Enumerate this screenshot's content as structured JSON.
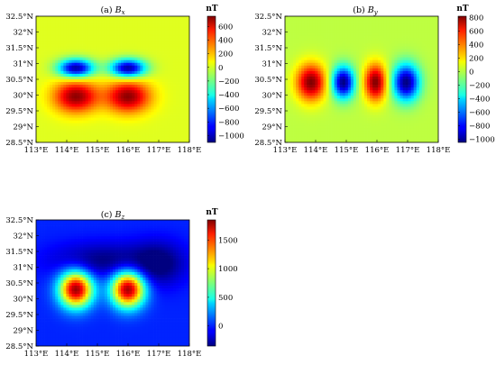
{
  "chart_data": [
    {
      "type": "heatmap",
      "title": "(a) B_x",
      "title_prefix": "(a)",
      "title_symbol": "B",
      "title_sub": "x",
      "x_ticks": [
        "113°E",
        "114°E",
        "115°E",
        "116°E",
        "117°E",
        "118°E"
      ],
      "y_ticks": [
        "28.5°N",
        "29°N",
        "29.5°N",
        "30°N",
        "30.5°N",
        "31°N",
        "31.5°N",
        "32°N",
        "32.5°N"
      ],
      "xlim": [
        113,
        118
      ],
      "ylim": [
        28.5,
        32.5
      ],
      "colorbar": {
        "unit": "nT",
        "range": [
          -1100,
          750
        ],
        "ticks": [
          600,
          400,
          200,
          0,
          -200,
          -400,
          -600,
          -800,
          -1000
        ],
        "tick_labels": [
          "600",
          "400",
          "200",
          "0",
          "−200",
          "−400",
          "−600",
          "−800",
          "−1000"
        ]
      },
      "background_value": 0,
      "blobs": [
        {
          "lon": 114.3,
          "lat": 30.85,
          "value": -1050,
          "sx": 0.4,
          "sy": 0.2
        },
        {
          "lon": 116.0,
          "lat": 30.85,
          "value": -1050,
          "sx": 0.4,
          "sy": 0.2
        },
        {
          "lon": 114.3,
          "lat": 29.95,
          "value": 720,
          "sx": 0.5,
          "sy": 0.35
        },
        {
          "lon": 116.0,
          "lat": 29.95,
          "value": 720,
          "sx": 0.5,
          "sy": 0.35
        }
      ]
    },
    {
      "type": "heatmap",
      "title": "(b) B_y",
      "title_prefix": "(b)",
      "title_symbol": "B",
      "title_sub": "y",
      "x_ticks": [
        "113°E",
        "114°E",
        "115°E",
        "116°E",
        "117°E",
        "118°E"
      ],
      "y_ticks": [
        "28.5°N",
        "29°N",
        "29.5°N",
        "30°N",
        "30.5°N",
        "31°N",
        "31.5°N",
        "32°N",
        "32.5°N"
      ],
      "xlim": [
        113,
        118
      ],
      "ylim": [
        28.5,
        32.5
      ],
      "colorbar": {
        "unit": "nT",
        "range": [
          -1050,
          820
        ],
        "ticks": [
          800,
          600,
          400,
          200,
          0,
          -200,
          -400,
          -600,
          -800,
          -1000
        ],
        "tick_labels": [
          "800",
          "600",
          "400",
          "200",
          "0",
          "−200",
          "−400",
          "−600",
          "−800",
          "−1000"
        ]
      },
      "background_value": 0,
      "blobs": [
        {
          "lon": 113.85,
          "lat": 30.4,
          "value": 820,
          "sx": 0.33,
          "sy": 0.4
        },
        {
          "lon": 114.9,
          "lat": 30.4,
          "value": -1050,
          "sx": 0.25,
          "sy": 0.35
        },
        {
          "lon": 115.95,
          "lat": 30.4,
          "value": 820,
          "sx": 0.25,
          "sy": 0.4
        },
        {
          "lon": 116.95,
          "lat": 30.4,
          "value": -1050,
          "sx": 0.3,
          "sy": 0.4
        }
      ]
    },
    {
      "type": "heatmap",
      "title": "(c) B_z",
      "title_prefix": "(c)",
      "title_symbol": "B",
      "title_sub": "z",
      "x_ticks": [
        "113°E",
        "114°E",
        "115°E",
        "116°E",
        "117°E",
        "118°E"
      ],
      "y_ticks": [
        "28.5°N",
        "29°N",
        "29.5°N",
        "30°N",
        "30.5°N",
        "31°N",
        "31.5°N",
        "32°N",
        "32.5°N"
      ],
      "xlim": [
        113,
        118
      ],
      "ylim": [
        28.5,
        32.5
      ],
      "colorbar": {
        "unit": "nT",
        "range": [
          -350,
          1850
        ],
        "ticks": [
          1500,
          1000,
          500,
          0
        ],
        "tick_labels": [
          "1500",
          "1000",
          "500",
          "0"
        ]
      },
      "background_value": 0,
      "blobs": [
        {
          "lon": 114.3,
          "lat": 30.3,
          "value": 1800,
          "sx": 0.38,
          "sy": 0.4
        },
        {
          "lon": 116.0,
          "lat": 30.3,
          "value": 1800,
          "sx": 0.38,
          "sy": 0.4
        },
        {
          "lon": 115.2,
          "lat": 31.2,
          "value": -350,
          "sx": 1.2,
          "sy": 0.4
        },
        {
          "lon": 117.0,
          "lat": 31.1,
          "value": -350,
          "sx": 0.6,
          "sy": 0.5
        }
      ]
    }
  ]
}
